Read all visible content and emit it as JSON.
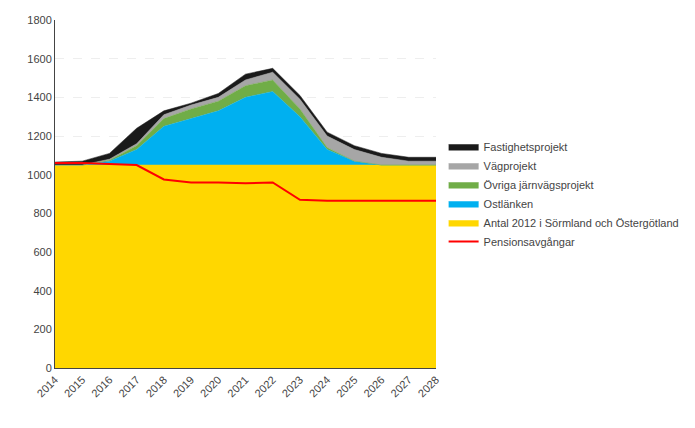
{
  "chart_data": {
    "type": "area",
    "stacked": true,
    "x": [
      2014,
      2015,
      2016,
      2017,
      2018,
      2019,
      2020,
      2021,
      2022,
      2023,
      2024,
      2025,
      2026,
      2027,
      2028
    ],
    "series": [
      {
        "name": "Antal 2012 i Sörmland och Östergötland",
        "color": "#ffd700",
        "values": [
          1050,
          1050,
          1050,
          1050,
          1050,
          1050,
          1050,
          1050,
          1050,
          1050,
          1050,
          1050,
          1050,
          1050,
          1050
        ]
      },
      {
        "name": "Ostlänken",
        "color": "#00b0f0",
        "values": [
          0,
          0,
          20,
          80,
          200,
          240,
          280,
          350,
          380,
          250,
          80,
          20,
          0,
          0,
          0
        ]
      },
      {
        "name": "Övriga järnvägsprojekt",
        "color": "#70ad47",
        "values": [
          0,
          0,
          5,
          20,
          40,
          50,
          50,
          60,
          60,
          40,
          10,
          0,
          0,
          0,
          0
        ]
      },
      {
        "name": "Vägprojekt",
        "color": "#a6a6a6",
        "values": [
          0,
          0,
          5,
          10,
          20,
          20,
          20,
          30,
          40,
          50,
          60,
          60,
          40,
          20,
          20
        ]
      },
      {
        "name": "Fastighetsprojekt",
        "color": "#1a1a1a",
        "values": [
          15,
          20,
          30,
          80,
          20,
          10,
          20,
          30,
          20,
          20,
          20,
          20,
          20,
          20,
          20
        ]
      },
      {
        "name": "Pensionsavgångar",
        "color": "#ff0000",
        "type": "line",
        "values": [
          1060,
          1060,
          1055,
          1050,
          975,
          960,
          960,
          955,
          960,
          870,
          865,
          865,
          865,
          865,
          865
        ]
      }
    ],
    "xlim": [
      2014,
      2028
    ],
    "xticks": [
      2014,
      2015,
      2016,
      2017,
      2018,
      2019,
      2020,
      2021,
      2022,
      2023,
      2024,
      2025,
      2026,
      2027,
      2028
    ],
    "ylim": [
      0,
      1800
    ],
    "yticks": [
      0,
      200,
      400,
      600,
      800,
      1000,
      1200,
      1400,
      1600,
      1800
    ],
    "grid": true,
    "legend": "right"
  }
}
